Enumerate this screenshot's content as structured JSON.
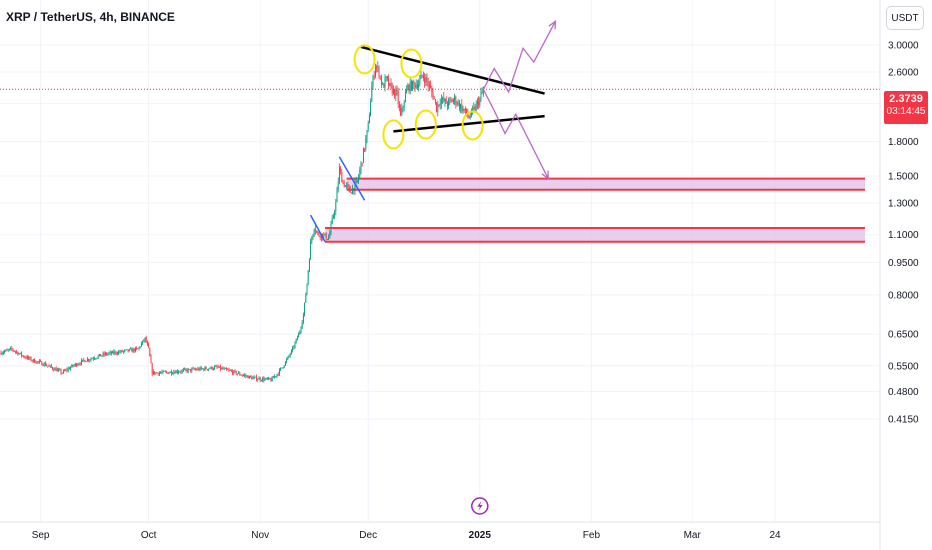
{
  "header": {
    "title": "XRP / TetherUS, 4h, BINANCE",
    "currency_button": "USDT"
  },
  "price_badge": {
    "price": "2.3739",
    "countdown": "03:14:45"
  },
  "colors": {
    "bull": "#089981",
    "bear": "#f23645",
    "zone_fill": "#e1bee7",
    "zone_border": "#f23645",
    "trendline": "#000000",
    "marker": "#f5e400",
    "projection": "#ba68c8",
    "flag_line": "#2962ff",
    "price_line": "#f23645"
  },
  "icons": {
    "event_marker": "lightning-icon"
  },
  "chart_data": {
    "type": "candlestick",
    "title": "XRP / TetherUS, 4h, BINANCE",
    "yscale": "log",
    "ylim": [
      0.4,
      3.2
    ],
    "y_ticks": [
      {
        "label": "3.0000",
        "v": 3.0
      },
      {
        "label": "2.6000",
        "v": 2.6
      },
      {
        "label": "2.2000",
        "v": 2.2
      },
      {
        "label": "1.8000",
        "v": 1.8
      },
      {
        "label": "1.5000",
        "v": 1.5
      },
      {
        "label": "1.3000",
        "v": 1.3
      },
      {
        "label": "1.1000",
        "v": 1.1
      },
      {
        "label": "0.9500",
        "v": 0.95
      },
      {
        "label": "0.8000",
        "v": 0.8
      },
      {
        "label": "0.6500",
        "v": 0.65
      },
      {
        "label": "0.5500",
        "v": 0.55
      },
      {
        "label": "0.4800",
        "v": 0.48
      },
      {
        "label": "0.4150",
        "v": 0.415
      }
    ],
    "x_ticks": [
      {
        "label": "Sep",
        "d": "2024-09-01",
        "bold": false
      },
      {
        "label": "Oct",
        "d": "2024-10-01",
        "bold": false
      },
      {
        "label": "Nov",
        "d": "2024-11-01",
        "bold": false
      },
      {
        "label": "Dec",
        "d": "2024-12-01",
        "bold": false
      },
      {
        "label": "2025",
        "d": "2025-01-01",
        "bold": true
      },
      {
        "label": "Feb",
        "d": "2025-02-01",
        "bold": false
      },
      {
        "label": "Mar",
        "d": "2025-03-01",
        "bold": false
      },
      {
        "label": "24",
        "d": "2025-03-24",
        "bold": false
      }
    ],
    "last_price": 2.3739,
    "price_path": [
      [
        "2024-08-21",
        0.59
      ],
      [
        "2024-08-24",
        0.6
      ],
      [
        "2024-08-27",
        0.58
      ],
      [
        "2024-08-30",
        0.565
      ],
      [
        "2024-09-02",
        0.555
      ],
      [
        "2024-09-05",
        0.54
      ],
      [
        "2024-09-07",
        0.53
      ],
      [
        "2024-09-10",
        0.55
      ],
      [
        "2024-09-13",
        0.565
      ],
      [
        "2024-09-16",
        0.575
      ],
      [
        "2024-09-19",
        0.585
      ],
      [
        "2024-09-22",
        0.59
      ],
      [
        "2024-09-25",
        0.595
      ],
      [
        "2024-09-28",
        0.6
      ],
      [
        "2024-09-30",
        0.635
      ],
      [
        "2024-10-01",
        0.6
      ],
      [
        "2024-10-02",
        0.53
      ],
      [
        "2024-10-05",
        0.53
      ],
      [
        "2024-10-10",
        0.535
      ],
      [
        "2024-10-15",
        0.54
      ],
      [
        "2024-10-20",
        0.545
      ],
      [
        "2024-10-25",
        0.53
      ],
      [
        "2024-10-30",
        0.515
      ],
      [
        "2024-11-04",
        0.51
      ],
      [
        "2024-11-06",
        0.53
      ],
      [
        "2024-11-08",
        0.56
      ],
      [
        "2024-11-10",
        0.6
      ],
      [
        "2024-11-12",
        0.66
      ],
      [
        "2024-11-13",
        0.72
      ],
      [
        "2024-11-14",
        0.85
      ],
      [
        "2024-11-15",
        1.05
      ],
      [
        "2024-11-16",
        1.15
      ],
      [
        "2024-11-17",
        1.1
      ],
      [
        "2024-11-18",
        1.1
      ],
      [
        "2024-11-20",
        1.08
      ],
      [
        "2024-11-22",
        1.3
      ],
      [
        "2024-11-23",
        1.55
      ],
      [
        "2024-11-24",
        1.45
      ],
      [
        "2024-11-26",
        1.38
      ],
      [
        "2024-11-28",
        1.45
      ],
      [
        "2024-11-30",
        1.75
      ],
      [
        "2024-12-01",
        1.95
      ],
      [
        "2024-12-02",
        2.4
      ],
      [
        "2024-12-03",
        2.7
      ],
      [
        "2024-12-04",
        2.6
      ],
      [
        "2024-12-05",
        2.4
      ],
      [
        "2024-12-06",
        2.5
      ],
      [
        "2024-12-07",
        2.4
      ],
      [
        "2024-12-09",
        2.3
      ],
      [
        "2024-12-10",
        2.05
      ],
      [
        "2024-12-11",
        2.25
      ],
      [
        "2024-12-12",
        2.4
      ],
      [
        "2024-12-13",
        2.42
      ],
      [
        "2024-12-15",
        2.45
      ],
      [
        "2024-12-16",
        2.55
      ],
      [
        "2024-12-17",
        2.5
      ],
      [
        "2024-12-18",
        2.4
      ],
      [
        "2024-12-19",
        2.3
      ],
      [
        "2024-12-20",
        2.15
      ],
      [
        "2024-12-21",
        2.25
      ],
      [
        "2024-12-23",
        2.2
      ],
      [
        "2024-12-25",
        2.25
      ],
      [
        "2024-12-27",
        2.15
      ],
      [
        "2024-12-29",
        2.05
      ],
      [
        "2024-12-30",
        2.1
      ],
      [
        "2025-01-01",
        2.25
      ],
      [
        "2025-01-02",
        2.3739
      ]
    ],
    "zones": [
      {
        "from": "2024-11-25",
        "to": "2025-04-18",
        "low": 1.395,
        "high": 1.48
      },
      {
        "from": "2024-11-19",
        "to": "2025-04-18",
        "low": 1.06,
        "high": 1.14
      }
    ],
    "triangle": {
      "upper": [
        [
          "2024-11-29",
          2.97
        ],
        [
          "2025-01-19",
          2.32
        ]
      ],
      "lower": [
        [
          "2024-12-08",
          1.9
        ],
        [
          "2025-01-19",
          2.06
        ]
      ]
    },
    "markers": [
      {
        "d": "2024-11-30",
        "v": 2.78
      },
      {
        "d": "2024-12-13",
        "v": 2.72
      },
      {
        "d": "2024-12-08",
        "v": 1.87
      },
      {
        "d": "2024-12-17",
        "v": 1.97
      },
      {
        "d": "2024-12-30",
        "v": 1.96
      }
    ],
    "flags": [
      {
        "pts": [
          [
            "2024-11-15",
            1.22
          ],
          [
            "2024-11-19",
            1.06
          ]
        ]
      },
      {
        "pts": [
          [
            "2024-11-23",
            1.66
          ],
          [
            "2024-11-30",
            1.32
          ]
        ]
      }
    ],
    "projection_up": [
      [
        "2025-01-02",
        2.37
      ],
      [
        "2025-01-05",
        2.65
      ],
      [
        "2025-01-09",
        2.34
      ],
      [
        "2025-01-13",
        2.95
      ],
      [
        "2025-01-16",
        2.74
      ],
      [
        "2025-01-22",
        3.4
      ]
    ],
    "projection_down": [
      [
        "2025-01-02",
        2.37
      ],
      [
        "2025-01-05",
        2.12
      ],
      [
        "2025-01-08",
        1.88
      ],
      [
        "2025-01-11",
        2.08
      ],
      [
        "2025-01-20",
        1.48
      ]
    ],
    "event": {
      "d": "2025-01-01"
    }
  }
}
